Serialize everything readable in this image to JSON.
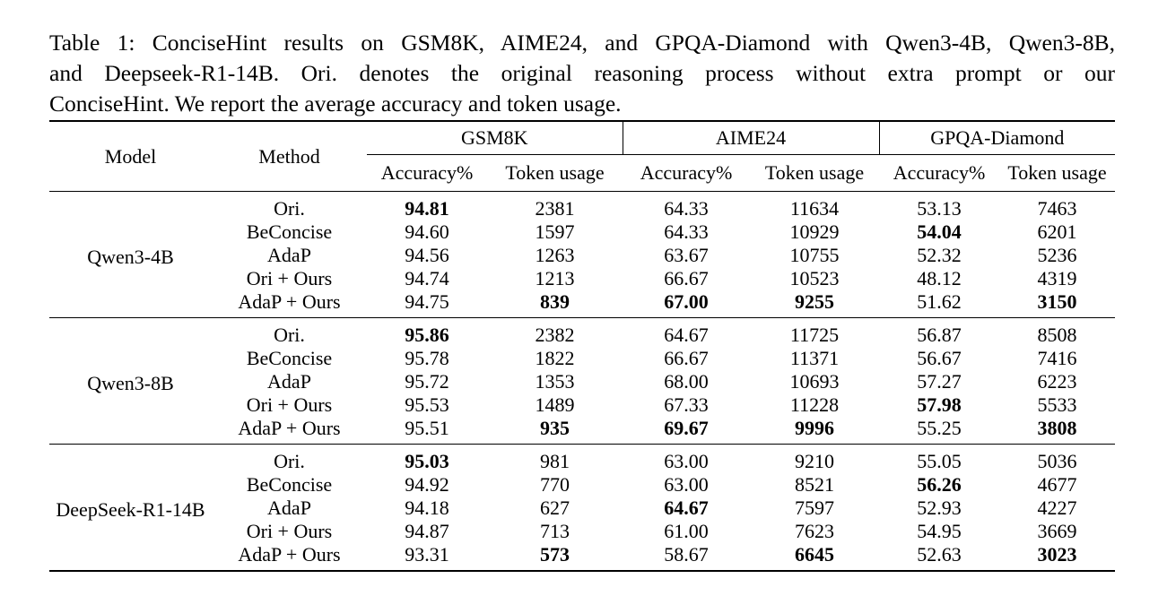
{
  "caption": {
    "lines": [
      "Table 1: ConciseHint results on GSM8K, AIME24, and GPQA-Diamond with Qwen3-4B, Qwen3-8B,",
      "and Deepseek-R1-14B. Ori. denotes the original reasoning process without extra prompt or our",
      "ConciseHint. We report the average accuracy and token usage."
    ]
  },
  "table": {
    "model_header": "Model",
    "method_header": "Method",
    "groups": [
      "GSM8K",
      "AIME24",
      "GPQA-Diamond"
    ],
    "subheaders": [
      "Accuracy%",
      "Token usage",
      "Accuracy%",
      "Token usage",
      "Accuracy%",
      "Token usage"
    ],
    "blocks": [
      {
        "model": "Qwen3-4B",
        "rows": [
          {
            "method": "Ori.",
            "values": [
              "94.81",
              "2381",
              "64.33",
              "11634",
              "53.13",
              "7463"
            ],
            "bold": [
              true,
              false,
              false,
              false,
              false,
              false
            ]
          },
          {
            "method": "BeConcise",
            "values": [
              "94.60",
              "1597",
              "64.33",
              "10929",
              "54.04",
              "6201"
            ],
            "bold": [
              false,
              false,
              false,
              false,
              true,
              false
            ]
          },
          {
            "method": "AdaP",
            "values": [
              "94.56",
              "1263",
              "63.67",
              "10755",
              "52.32",
              "5236"
            ],
            "bold": [
              false,
              false,
              false,
              false,
              false,
              false
            ]
          },
          {
            "method": "Ori + Ours",
            "values": [
              "94.74",
              "1213",
              "66.67",
              "10523",
              "48.12",
              "4319"
            ],
            "bold": [
              false,
              false,
              false,
              false,
              false,
              false
            ]
          },
          {
            "method": "AdaP + Ours",
            "values": [
              "94.75",
              "839",
              "67.00",
              "9255",
              "51.62",
              "3150"
            ],
            "bold": [
              false,
              true,
              true,
              true,
              false,
              true
            ]
          }
        ]
      },
      {
        "model": "Qwen3-8B",
        "rows": [
          {
            "method": "Ori.",
            "values": [
              "95.86",
              "2382",
              "64.67",
              "11725",
              "56.87",
              "8508"
            ],
            "bold": [
              true,
              false,
              false,
              false,
              false,
              false
            ]
          },
          {
            "method": "BeConcise",
            "values": [
              "95.78",
              "1822",
              "66.67",
              "11371",
              "56.67",
              "7416"
            ],
            "bold": [
              false,
              false,
              false,
              false,
              false,
              false
            ]
          },
          {
            "method": "AdaP",
            "values": [
              "95.72",
              "1353",
              "68.00",
              "10693",
              "57.27",
              "6223"
            ],
            "bold": [
              false,
              false,
              false,
              false,
              false,
              false
            ]
          },
          {
            "method": "Ori + Ours",
            "values": [
              "95.53",
              "1489",
              "67.33",
              "11228",
              "57.98",
              "5533"
            ],
            "bold": [
              false,
              false,
              false,
              false,
              true,
              false
            ]
          },
          {
            "method": "AdaP + Ours",
            "values": [
              "95.51",
              "935",
              "69.67",
              "9996",
              "55.25",
              "3808"
            ],
            "bold": [
              false,
              true,
              true,
              true,
              false,
              true
            ]
          }
        ]
      },
      {
        "model": "DeepSeek-R1-14B",
        "rows": [
          {
            "method": "Ori.",
            "values": [
              "95.03",
              "981",
              "63.00",
              "9210",
              "55.05",
              "5036"
            ],
            "bold": [
              true,
              false,
              false,
              false,
              false,
              false
            ]
          },
          {
            "method": "BeConcise",
            "values": [
              "94.92",
              "770",
              "63.00",
              "8521",
              "56.26",
              "4677"
            ],
            "bold": [
              false,
              false,
              false,
              false,
              true,
              false
            ]
          },
          {
            "method": "AdaP",
            "values": [
              "94.18",
              "627",
              "64.67",
              "7597",
              "52.93",
              "4227"
            ],
            "bold": [
              false,
              false,
              true,
              false,
              false,
              false
            ]
          },
          {
            "method": "Ori + Ours",
            "values": [
              "94.87",
              "713",
              "61.00",
              "7623",
              "54.95",
              "3669"
            ],
            "bold": [
              false,
              false,
              false,
              false,
              false,
              false
            ]
          },
          {
            "method": "AdaP + Ours",
            "values": [
              "93.31",
              "573",
              "58.67",
              "6645",
              "52.63",
              "3023"
            ],
            "bold": [
              false,
              true,
              false,
              true,
              false,
              true
            ]
          }
        ]
      }
    ]
  }
}
